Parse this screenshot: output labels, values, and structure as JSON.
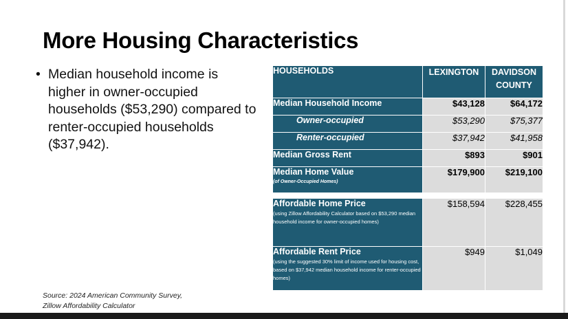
{
  "title": "More Housing Characteristics",
  "bullet": {
    "symbol": "•",
    "text": "Median household income is higher in owner-occupied households ($53,290) compared to renter-occupied households ($37,942)."
  },
  "source": {
    "line1": "Source: 2024 American Community Survey,",
    "line2": "Zillow Affordability Calculator"
  },
  "table": {
    "header": {
      "label": "HOUSEHOLDS",
      "col1": "LEXINGTON",
      "col2_line1": "DAVIDSON",
      "col2_line2": "COUNTY"
    },
    "rows": [
      {
        "label": "Median Household Income",
        "lex": "$43,128",
        "dav": "$64,172"
      },
      {
        "label": "Owner-occupied",
        "lex": "$53,290",
        "dav": "$75,377"
      },
      {
        "label": "Renter-occupied",
        "lex": "$37,942",
        "dav": "$41,958"
      },
      {
        "label": "Median Gross Rent",
        "lex": "$893",
        "dav": "$901"
      },
      {
        "label": "Median Home Value",
        "note": "(of Owner-Occupied Homes)",
        "lex": "$179,900",
        "dav": "$219,100"
      },
      {
        "label": "Affordable Home Price",
        "note": "(using Zillow Affordability Calculator based on $53,290 median household income for owner-occupied homes)",
        "lex": "$158,594",
        "dav": "$228,455"
      },
      {
        "label": "Affordable Rent Price",
        "note": "(using the suggested 30% limit of income used for housing cost, based on $37,942 median household income for renter-occupied homes)",
        "lex": "$949",
        "dav": "$1,049"
      }
    ]
  },
  "colors": {
    "header_bg": "#1f5b73",
    "cell_bg": "#dcdcdc"
  }
}
